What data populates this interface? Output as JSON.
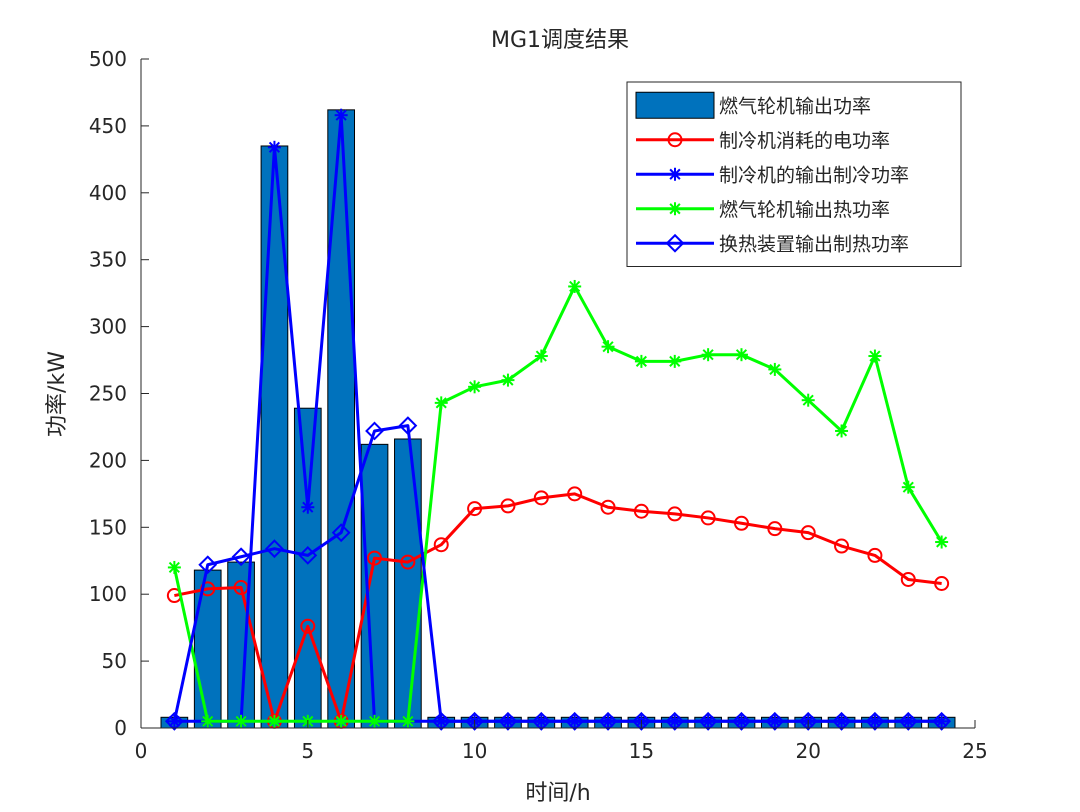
{
  "chart_data": {
    "type": "bar",
    "title": "MG1调度结果",
    "xlabel": "时间/h",
    "ylabel": "功率/kW",
    "xlim": [
      0,
      25
    ],
    "ylim": [
      0,
      500
    ],
    "xticks": [
      0,
      5,
      10,
      15,
      20,
      25
    ],
    "yticks": [
      0,
      50,
      100,
      150,
      200,
      250,
      300,
      350,
      400,
      450,
      500
    ],
    "x": [
      1,
      2,
      3,
      4,
      5,
      6,
      7,
      8,
      9,
      10,
      11,
      12,
      13,
      14,
      15,
      16,
      17,
      18,
      19,
      20,
      21,
      22,
      23,
      24
    ],
    "legend_position": "top-right",
    "grid": false,
    "series": [
      {
        "name": "燃气轮机输出功率",
        "kind": "bar",
        "color": "#0072BD",
        "values": [
          8,
          118,
          124,
          435,
          239,
          462,
          212,
          216,
          8,
          8,
          8,
          8,
          8,
          8,
          8,
          8,
          8,
          8,
          8,
          8,
          8,
          8,
          8,
          8
        ]
      },
      {
        "name": "制冷机消耗的电功率",
        "kind": "line",
        "marker": "circle",
        "color": "#FF0000",
        "values": [
          99,
          104,
          105,
          5,
          76,
          5,
          127,
          124,
          137,
          164,
          166,
          172,
          175,
          165,
          162,
          160,
          157,
          153,
          149,
          146,
          136,
          129,
          111,
          108
        ]
      },
      {
        "name": "制冷机的输出制冷功率",
        "kind": "line",
        "marker": "asterisk",
        "color": "#0000FF",
        "values": [
          5,
          5,
          5,
          434,
          165,
          458,
          5,
          5,
          5,
          5,
          5,
          5,
          5,
          5,
          5,
          5,
          5,
          5,
          5,
          5,
          5,
          5,
          5,
          5
        ]
      },
      {
        "name": "燃气轮机输出热功率",
        "kind": "line",
        "marker": "asterisk",
        "color": "#00FF00",
        "values": [
          120,
          5,
          5,
          5,
          5,
          5,
          5,
          5,
          243,
          255,
          260,
          278,
          330,
          285,
          274,
          274,
          279,
          279,
          268,
          245,
          222,
          278,
          180,
          139
        ]
      },
      {
        "name": "换热装置输出制热功率",
        "kind": "line",
        "marker": "diamond",
        "color": "#0000FF",
        "values": [
          5,
          122,
          128,
          134,
          129,
          146,
          222,
          226,
          5,
          5,
          5,
          5,
          5,
          5,
          5,
          5,
          5,
          5,
          5,
          5,
          5,
          5,
          5,
          5
        ]
      }
    ]
  }
}
